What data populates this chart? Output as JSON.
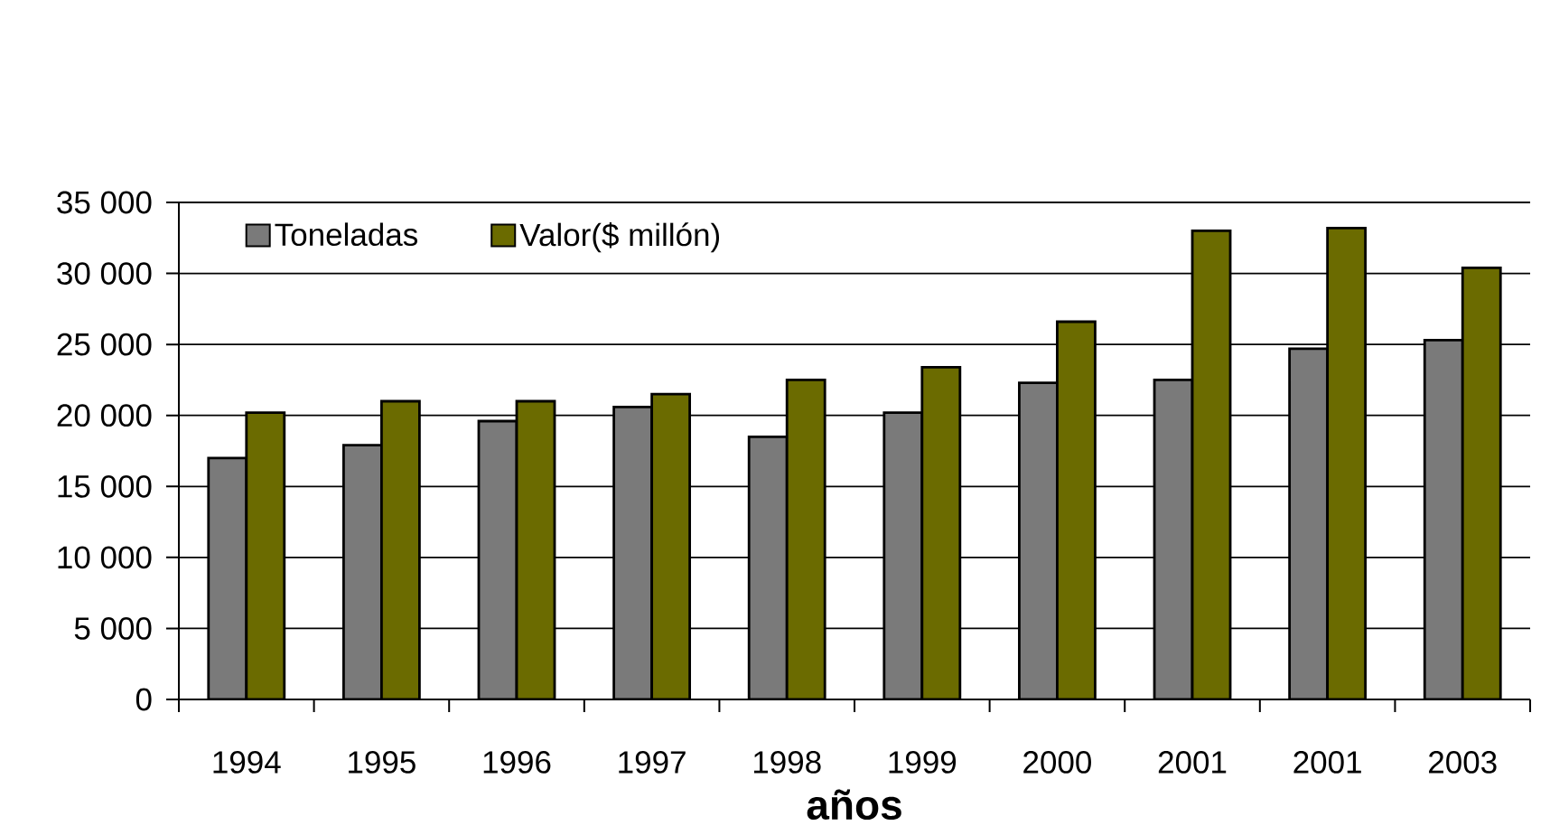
{
  "chart_data": {
    "type": "bar",
    "categories": [
      "1994",
      "1995",
      "1996",
      "1997",
      "1998",
      "1999",
      "2000",
      "2001",
      "2001",
      "2003"
    ],
    "series": [
      {
        "name": "Toneladas",
        "color": "#7a7a7a",
        "values": [
          17000,
          17900,
          19600,
          20600,
          18500,
          20200,
          22300,
          22500,
          24700,
          25300
        ]
      },
      {
        "name": "Valor($ millón)",
        "color": "#6b6b00",
        "values": [
          20200,
          21000,
          21000,
          21500,
          22500,
          23400,
          26600,
          33000,
          33200,
          30400
        ]
      }
    ],
    "xlabel": "años",
    "ylim": [
      0,
      35000
    ],
    "yticks": [
      0,
      {
        "value": 5000,
        "label": "5 000"
      },
      {
        "value": 10000,
        "label": "10 000"
      },
      {
        "value": 15000,
        "label": "15 000"
      },
      {
        "value": 20000,
        "label": "20 000"
      },
      {
        "value": 25000,
        "label": "25 000"
      },
      {
        "value": 30000,
        "label": "30 000"
      },
      {
        "value": 35000,
        "label": "35 000"
      }
    ],
    "grid": "y",
    "legend": "top left"
  }
}
